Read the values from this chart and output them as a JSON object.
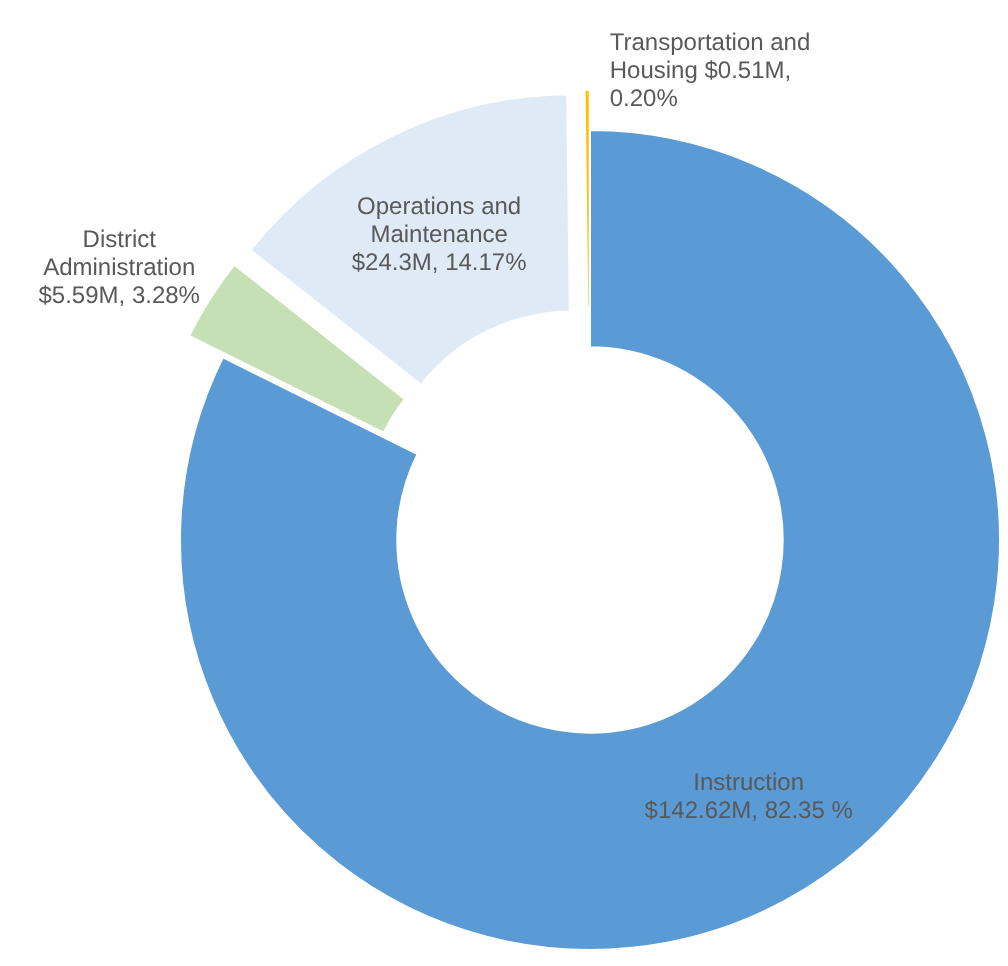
{
  "chart_data": {
    "type": "donut",
    "categories": [
      "Instruction",
      "District Administration",
      "Operations and Maintenance",
      "Transportation and Housing"
    ],
    "values": [
      82.35,
      3.28,
      14.17,
      0.2
    ],
    "colors": [
      "#5b9bd5",
      "#c5e0b4",
      "#deebf7",
      "#ffc000"
    ],
    "value_labels": [
      "$142.62M, 82.35 %",
      "$5.59M, 3.28%",
      "$24.3M, 14.17%",
      "$0.51M, 0.20%"
    ]
  }
}
